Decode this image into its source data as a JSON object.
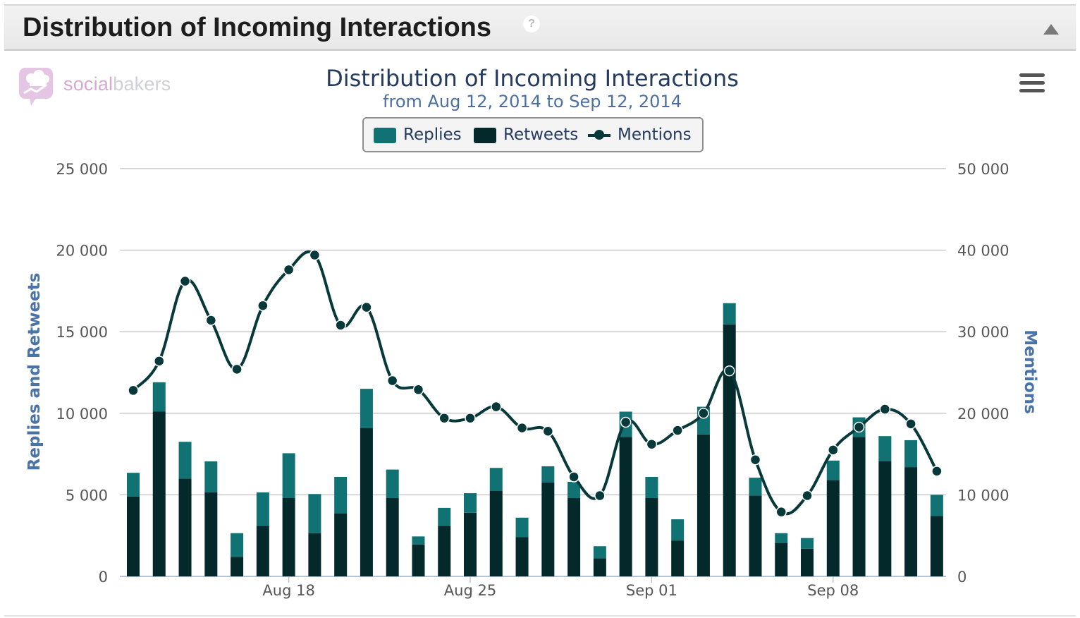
{
  "panel": {
    "title": "Distribution of Incoming Interactions",
    "help_glyph": "?"
  },
  "logo": {
    "part1": "social",
    "part2": "bakers"
  },
  "colors": {
    "replies": "#107272",
    "retweets": "#04292a",
    "mentions": "#07383a",
    "grid": "#c8c8c8",
    "axis_title": "#4a73a8"
  },
  "chart_data": {
    "type": "bar",
    "title": "Distribution of Incoming Interactions",
    "subtitle": "from Aug 12, 2014 to Sep 12, 2014",
    "stacked": true,
    "x": [
      "2014-08-12",
      "2014-08-13",
      "2014-08-14",
      "2014-08-15",
      "2014-08-16",
      "2014-08-17",
      "2014-08-18",
      "2014-08-19",
      "2014-08-20",
      "2014-08-21",
      "2014-08-22",
      "2014-08-23",
      "2014-08-24",
      "2014-08-25",
      "2014-08-26",
      "2014-08-27",
      "2014-08-28",
      "2014-08-29",
      "2014-08-30",
      "2014-08-31",
      "2014-09-01",
      "2014-09-02",
      "2014-09-03",
      "2014-09-04",
      "2014-09-05",
      "2014-09-06",
      "2014-09-07",
      "2014-09-08",
      "2014-09-09",
      "2014-09-10",
      "2014-09-11",
      "2014-09-12"
    ],
    "x_ticks": [
      {
        "x": "2014-08-18",
        "label": "Aug 18"
      },
      {
        "x": "2014-08-25",
        "label": "Aug 25"
      },
      {
        "x": "2014-09-01",
        "label": "Sep 01"
      },
      {
        "x": "2014-09-08",
        "label": "Sep 08"
      }
    ],
    "series": [
      {
        "name": "Replies",
        "type": "bar",
        "axis": "left",
        "values": [
          1450,
          1800,
          2250,
          1900,
          1450,
          2050,
          2750,
          2400,
          2250,
          2400,
          1750,
          500,
          1100,
          1200,
          1400,
          1200,
          1000,
          1000,
          750,
          1550,
          1300,
          1300,
          1700,
          1300,
          1100,
          600,
          650,
          1200,
          1200,
          1550,
          1650,
          1300
        ]
      },
      {
        "name": "Retweets",
        "type": "bar",
        "axis": "left",
        "values": [
          4900,
          10100,
          6000,
          5150,
          1200,
          3100,
          4800,
          2650,
          3850,
          9100,
          4800,
          1950,
          3100,
          3900,
          5250,
          2400,
          5750,
          4800,
          1100,
          8550,
          4800,
          2200,
          8700,
          15450,
          4950,
          2050,
          1700,
          5900,
          8550,
          7050,
          6700,
          3700
        ]
      },
      {
        "name": "Mentions",
        "type": "line",
        "axis": "right",
        "values": [
          22800,
          26400,
          36200,
          31400,
          25400,
          33200,
          37600,
          39400,
          30800,
          33000,
          24000,
          22900,
          19400,
          19400,
          20800,
          18200,
          17800,
          12200,
          9900,
          18900,
          16200,
          17900,
          20000,
          25200,
          14300,
          7900,
          9900,
          15500,
          18300,
          20500,
          18700,
          12900
        ]
      }
    ],
    "yaxis_left": {
      "label": "Replies and Retweets",
      "range": [
        0,
        25000
      ],
      "ticks": [
        0,
        5000,
        10000,
        15000,
        20000,
        25000
      ],
      "tick_labels": [
        "0",
        "5 000",
        "10 000",
        "15 000",
        "20 000",
        "25 000"
      ]
    },
    "yaxis_right": {
      "label": "Mentions",
      "range": [
        0,
        50000
      ],
      "ticks": [
        0,
        10000,
        20000,
        30000,
        40000,
        50000
      ],
      "tick_labels": [
        "0",
        "10 000",
        "20 000",
        "30 000",
        "40 000",
        "50 000"
      ]
    },
    "grid": true,
    "legend_position": "top-center"
  }
}
